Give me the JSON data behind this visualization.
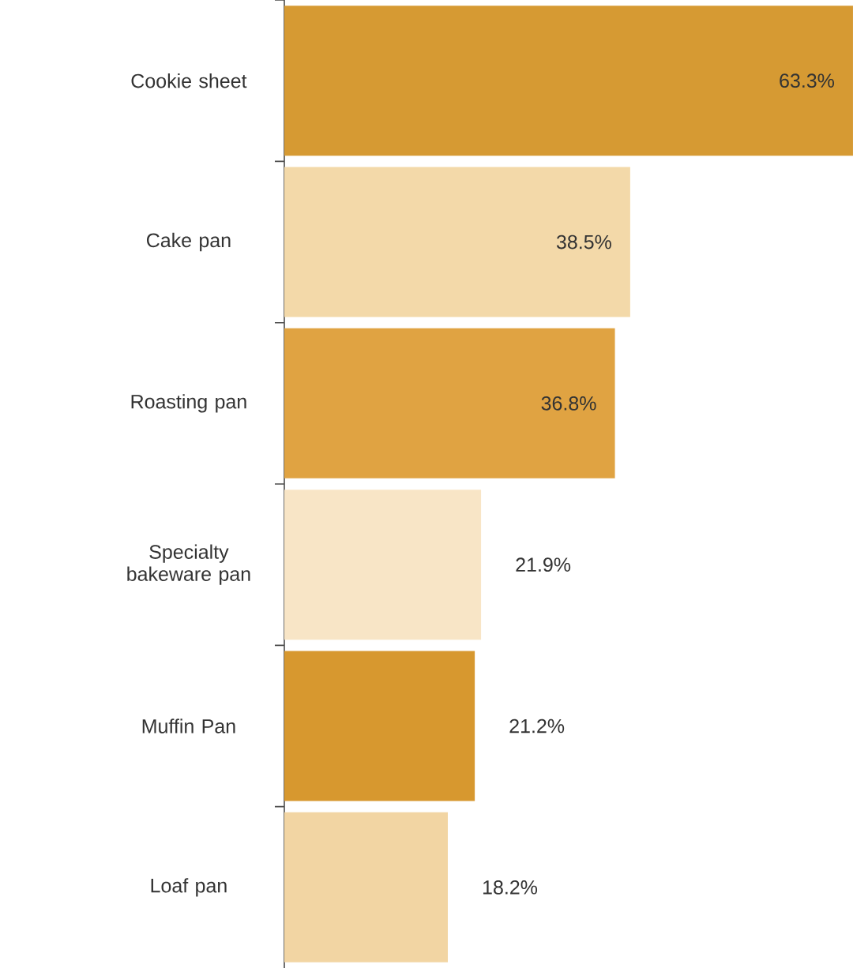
{
  "chart_data": {
    "type": "bar",
    "orientation": "horizontal",
    "categories": [
      "Cookie sheet",
      "Cake pan",
      "Roasting pan",
      "Specialty bakeware pan",
      "Muffin Pan",
      "Loaf pan"
    ],
    "values": [
      63.3,
      38.5,
      36.8,
      21.9,
      21.2,
      18.2
    ],
    "colors": [
      "#d69a33",
      "#f3d9a9",
      "#e0a342",
      "#f8e5c6",
      "#d7982f",
      "#f2d5a3"
    ],
    "value_labels": [
      "63.3%",
      "38.5%",
      "36.8%",
      "21.9%",
      "21.2%",
      "18.2%"
    ]
  }
}
